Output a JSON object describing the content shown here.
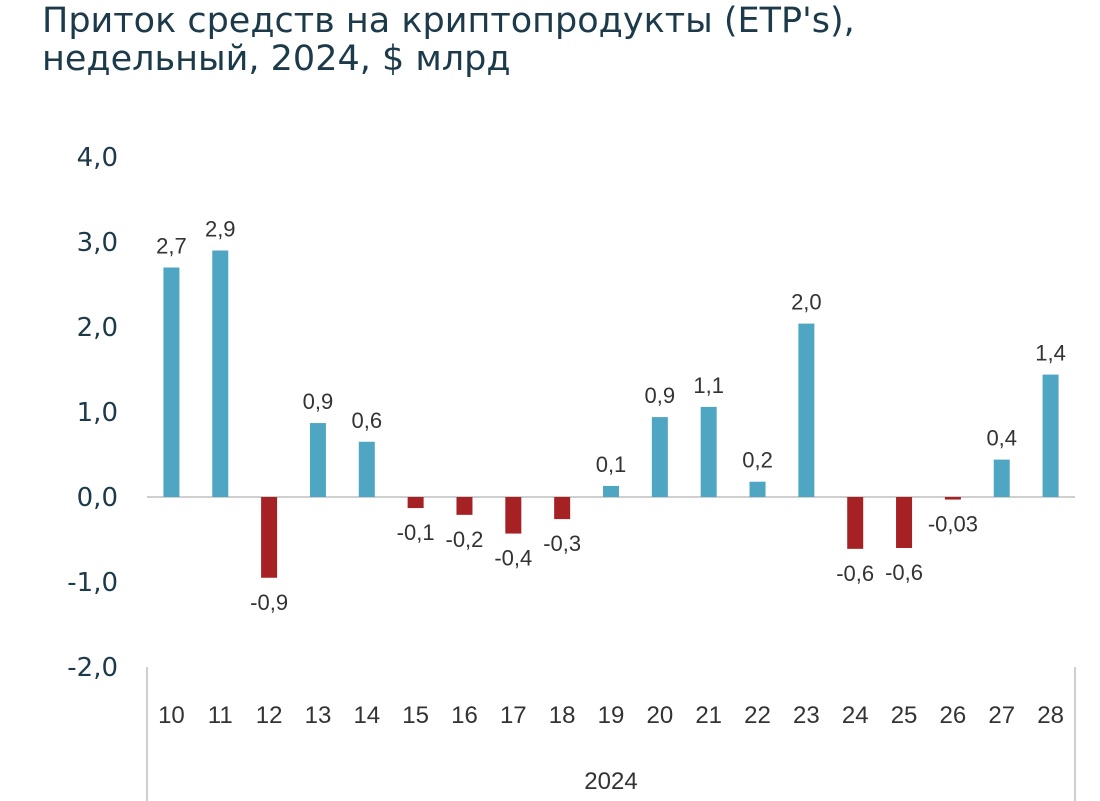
{
  "chart_data": {
    "type": "bar",
    "title": [
      "Приток средств на криптопродукты (ETP's),",
      "недельный, 2024, $ млрд"
    ],
    "xlabel": "2024",
    "ylabel": "",
    "ylim": [
      -2.0,
      4.0
    ],
    "yticks": [
      4.0,
      3.0,
      2.0,
      1.0,
      0.0,
      -1.0,
      -2.0
    ],
    "ytick_labels": [
      "4,0",
      "3,0",
      "2,0",
      "1,0",
      "0,0",
      "-1,0",
      "-2,0"
    ],
    "categories": [
      "10",
      "11",
      "12",
      "13",
      "14",
      "15",
      "16",
      "17",
      "18",
      "19",
      "20",
      "21",
      "22",
      "23",
      "24",
      "25",
      "26",
      "27",
      "28"
    ],
    "values": [
      2.7,
      2.9,
      -0.95,
      0.87,
      0.65,
      -0.13,
      -0.21,
      -0.43,
      -0.26,
      0.13,
      0.94,
      1.06,
      0.18,
      2.04,
      -0.61,
      -0.6,
      -0.03,
      0.44,
      1.44
    ],
    "data_labels": [
      "2,7",
      "2,9",
      "-0,9",
      "0,9",
      "0,6",
      "-0,1",
      "-0,2",
      "-0,4",
      "-0,3",
      "0,1",
      "0,9",
      "1,1",
      "0,2",
      "2,0",
      "-0,6",
      "-0,6",
      "-0,03",
      "0,4",
      "1,4"
    ],
    "colors": {
      "positive": "#4fa6c3",
      "negative": "#a52123",
      "axis": "#cfcfcf",
      "title": "#1c3a4a"
    }
  }
}
